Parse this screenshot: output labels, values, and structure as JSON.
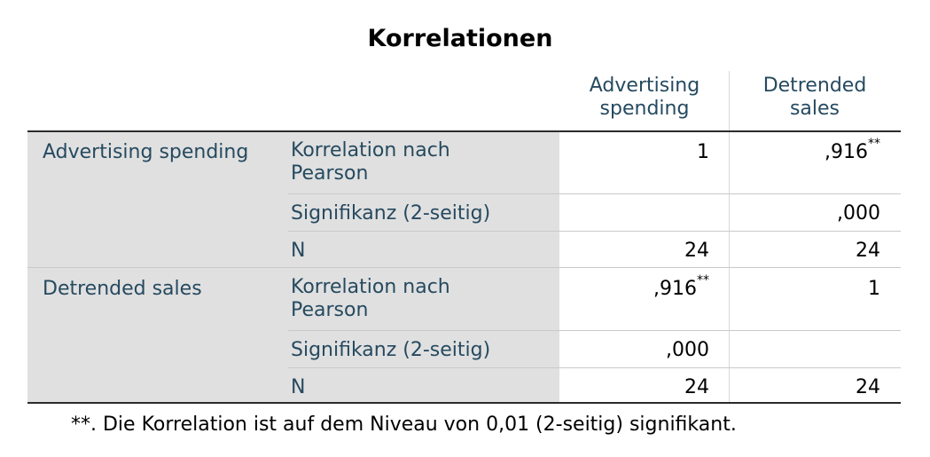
{
  "title": "Korrelationen",
  "columns": [
    "Advertising\nspending",
    "Detrended\nsales"
  ],
  "column_lines": [
    [
      "Advertising",
      "spending"
    ],
    [
      "Detrended",
      "sales"
    ]
  ],
  "rows": [
    {
      "variable": "Advertising spending",
      "stats": [
        {
          "label": "Korrelation nach\nPearson",
          "label_lines": [
            "Korrelation nach",
            "Pearson"
          ],
          "values": [
            {
              "v": "1",
              "sup": ""
            },
            {
              "v": ",916",
              "sup": "**"
            }
          ]
        },
        {
          "label": "Signifikanz (2-seitig)",
          "values": [
            {
              "v": "",
              "sup": ""
            },
            {
              "v": ",000",
              "sup": ""
            }
          ]
        },
        {
          "label": "N",
          "values": [
            {
              "v": "24",
              "sup": ""
            },
            {
              "v": "24",
              "sup": ""
            }
          ]
        }
      ]
    },
    {
      "variable": "Detrended sales",
      "stats": [
        {
          "label": "Korrelation nach\nPearson",
          "label_lines": [
            "Korrelation nach",
            "Pearson"
          ],
          "values": [
            {
              "v": ",916",
              "sup": "**"
            },
            {
              "v": "1",
              "sup": ""
            }
          ]
        },
        {
          "label": "Signifikanz (2-seitig)",
          "values": [
            {
              "v": ",000",
              "sup": ""
            },
            {
              "v": "",
              "sup": ""
            }
          ]
        },
        {
          "label": "N",
          "values": [
            {
              "v": "24",
              "sup": ""
            },
            {
              "v": "24",
              "sup": ""
            }
          ]
        }
      ]
    }
  ],
  "footnote": "**. Die Korrelation ist auf dem Niveau von 0,01 (2-seitig) signifikant.",
  "colors": {
    "header_text": "#264a60",
    "shade": "#e0e0e0",
    "value_text": "#000000"
  }
}
